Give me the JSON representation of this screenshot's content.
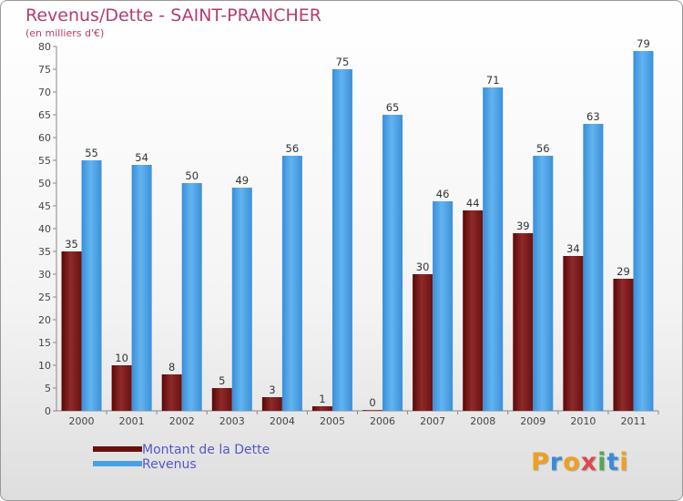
{
  "chart_data": {
    "type": "bar",
    "title": "Revenus/Dette - SAINT-PRANCHER",
    "subtitle": "(en milliers d'€)",
    "categories": [
      "2000",
      "2001",
      "2002",
      "2003",
      "2004",
      "2005",
      "2006",
      "2007",
      "2008",
      "2009",
      "2010",
      "2011"
    ],
    "series": [
      {
        "name": "Montant de la Dette",
        "color": "#7a1818",
        "values": [
          35,
          10,
          8,
          5,
          3,
          1,
          0,
          30,
          44,
          39,
          34,
          29
        ]
      },
      {
        "name": "Revenus",
        "color": "#4aa0e6",
        "values": [
          55,
          54,
          50,
          49,
          56,
          75,
          65,
          46,
          71,
          56,
          63,
          79
        ]
      }
    ],
    "ylim": [
      0,
      80
    ],
    "yticks": [
      0,
      5,
      10,
      15,
      20,
      25,
      30,
      35,
      40,
      45,
      50,
      55,
      60,
      65,
      70,
      75,
      80
    ],
    "grid": false,
    "legend_position": "bottom-left"
  },
  "logo": {
    "letters": [
      "P",
      "r",
      "o",
      "x",
      "i",
      "t",
      "i"
    ],
    "colors": [
      "#f0a020",
      "#3c8ad8",
      "#f0a020",
      "#e04848",
      "#50a850",
      "#3c8ad8",
      "#f0a020"
    ]
  }
}
